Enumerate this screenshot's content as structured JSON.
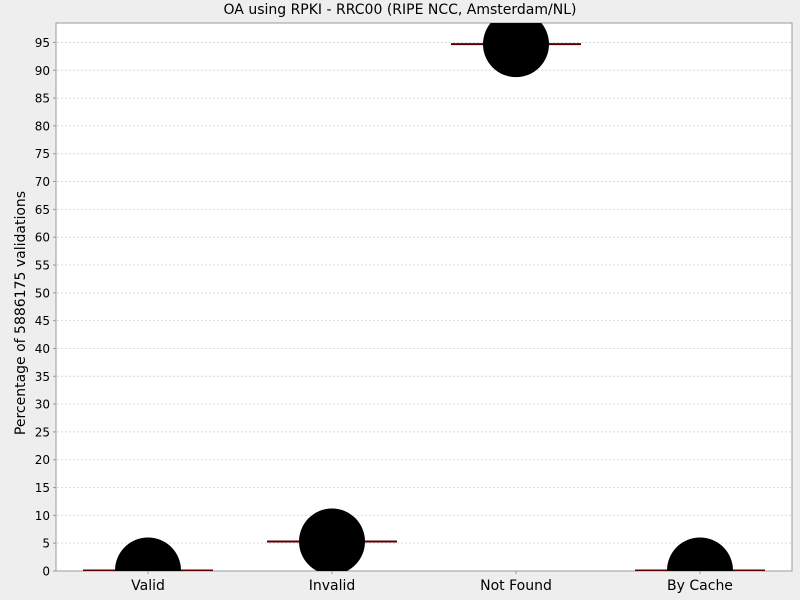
{
  "chart_data": {
    "type": "scatter",
    "title": "OA using RPKI - RRC00 (RIPE NCC, Amsterdam/NL)",
    "xlabel": "",
    "ylabel": "Percentage of 5886175 validations",
    "categories": [
      "Valid",
      "Invalid",
      "Not Found",
      "By Cache"
    ],
    "values": [
      0.1,
      5.3,
      94.7,
      0.1
    ],
    "ylim": [
      0,
      98.5
    ],
    "yticks": [
      0,
      5,
      10,
      15,
      20,
      25,
      30,
      35,
      40,
      45,
      50,
      55,
      60,
      65,
      70,
      75,
      80,
      85,
      90,
      95
    ],
    "grid": true,
    "legend": "none",
    "colors": {
      "marker": "#000000",
      "median_line": "#5a0000",
      "grid": "#d9d9d9",
      "plot_bg": "#ffffff",
      "page_bg": "#eeeeee"
    }
  }
}
